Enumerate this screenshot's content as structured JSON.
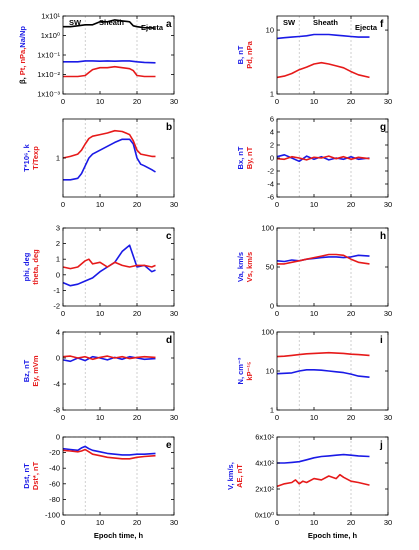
{
  "colors": {
    "blue": "#1a1ae6",
    "red": "#e61a1a",
    "black": "#000000",
    "gray": "#b0b0b0"
  },
  "chart_data": [
    {
      "id": "a",
      "type": "line",
      "letter": "a",
      "scale": "log",
      "xlim": [
        0,
        30
      ],
      "xticks": [
        "0",
        "10",
        "20",
        "30"
      ],
      "ylim": [
        -3,
        1
      ],
      "yticks": [
        {
          "v": 1,
          "t": "1x10¹"
        },
        {
          "v": 0,
          "t": "1x10⁰"
        },
        {
          "v": -1,
          "t": "1x10⁻¹"
        },
        {
          "v": -2,
          "t": "1x10⁻²"
        },
        {
          "v": -3,
          "t": "1x10⁻³"
        }
      ],
      "ylabel": [
        {
          "t": "β, ",
          "c": "black"
        },
        {
          "t": "Pt, nPa,",
          "c": "red"
        },
        {
          "t": "Na/Np",
          "c": "blue"
        }
      ],
      "headers": {
        "sw": "SW",
        "sheath": "Sheath",
        "ejecta": "Ejecta"
      },
      "series": [
        {
          "color": "black",
          "x": [
            0,
            2,
            4,
            6,
            8,
            10,
            12,
            14,
            16,
            18,
            19,
            20,
            22,
            25
          ],
          "y": [
            0.45,
            0.45,
            0.5,
            0.55,
            0.55,
            0.7,
            0.7,
            0.8,
            0.75,
            0.7,
            0.5,
            0.45,
            0.4,
            0.38
          ]
        },
        {
          "color": "blue",
          "x": [
            0,
            2,
            4,
            6,
            8,
            10,
            12,
            14,
            16,
            18,
            20,
            22,
            25
          ],
          "y": [
            -1.35,
            -1.35,
            -1.35,
            -1.3,
            -1.3,
            -1.32,
            -1.3,
            -1.32,
            -1.3,
            -1.3,
            -1.35,
            -1.38,
            -1.4
          ]
        },
        {
          "color": "red",
          "x": [
            0,
            2,
            4,
            6,
            7,
            8,
            10,
            12,
            14,
            16,
            18,
            19,
            20,
            22,
            25
          ],
          "y": [
            -2.1,
            -2.1,
            -2.1,
            -2.05,
            -1.9,
            -1.75,
            -1.65,
            -1.65,
            -1.6,
            -1.65,
            -1.7,
            -1.8,
            -2.05,
            -2.1,
            -2.1
          ]
        }
      ]
    },
    {
      "id": "b",
      "type": "line",
      "letter": "b",
      "scale": "log",
      "xlim": [
        0,
        30
      ],
      "xticks": [
        "0",
        "10",
        "20",
        "30"
      ],
      "ylim": [
        -0.5,
        0.5
      ],
      "yticks": [
        {
          "v": 0,
          "t": "1"
        }
      ],
      "ylabel": [
        {
          "t": "T*10⁶, k",
          "c": "blue"
        },
        {
          "t": "T/Texp",
          "c": "red"
        }
      ],
      "headers": null,
      "series": [
        {
          "color": "blue",
          "x": [
            0,
            2,
            4,
            5,
            6,
            7,
            8,
            10,
            12,
            14,
            16,
            18,
            19,
            20,
            21,
            22,
            24,
            25
          ],
          "y": [
            -0.28,
            -0.28,
            -0.26,
            -0.2,
            -0.1,
            0.0,
            0.05,
            0.1,
            0.15,
            0.2,
            0.24,
            0.24,
            0.18,
            0.0,
            -0.08,
            -0.1,
            -0.15,
            -0.18
          ]
        },
        {
          "color": "red",
          "x": [
            0,
            2,
            4,
            5,
            6,
            7,
            8,
            10,
            12,
            14,
            16,
            18,
            19,
            20,
            21,
            22,
            24,
            25
          ],
          "y": [
            0.0,
            0.02,
            0.05,
            0.1,
            0.18,
            0.25,
            0.28,
            0.3,
            0.32,
            0.35,
            0.34,
            0.3,
            0.22,
            0.1,
            0.05,
            0.04,
            0.02,
            0.02
          ]
        }
      ]
    },
    {
      "id": "c",
      "type": "line",
      "letter": "c",
      "scale": "linear",
      "xlim": [
        0,
        30
      ],
      "xticks": [
        "0",
        "10",
        "20",
        "30"
      ],
      "ylim": [
        -2,
        3
      ],
      "yticks": [
        {
          "v": -2,
          "t": "-2"
        },
        {
          "v": -1,
          "t": "-1"
        },
        {
          "v": 0,
          "t": "0"
        },
        {
          "v": 1,
          "t": "1"
        },
        {
          "v": 2,
          "t": "2"
        },
        {
          "v": 3,
          "t": "3"
        }
      ],
      "ylabel": [
        {
          "t": "phi, deg",
          "c": "blue"
        },
        {
          "t": "theta, deg",
          "c": "red"
        }
      ],
      "headers": null,
      "series": [
        {
          "color": "blue",
          "x": [
            0,
            2,
            4,
            6,
            8,
            10,
            12,
            14,
            16,
            18,
            19,
            20,
            22,
            24,
            25
          ],
          "y": [
            -0.5,
            -0.7,
            -0.6,
            -0.4,
            -0.2,
            0.2,
            0.5,
            0.8,
            1.5,
            1.9,
            1.2,
            0.5,
            0.6,
            0.2,
            0.3
          ]
        },
        {
          "color": "red",
          "x": [
            0,
            2,
            4,
            6,
            7,
            8,
            10,
            12,
            14,
            16,
            18,
            20,
            22,
            24,
            25
          ],
          "y": [
            0.5,
            0.4,
            0.5,
            0.9,
            1.0,
            0.7,
            0.8,
            0.5,
            0.8,
            0.6,
            0.5,
            0.6,
            0.6,
            0.5,
            0.6
          ]
        }
      ]
    },
    {
      "id": "d",
      "type": "line",
      "letter": "d",
      "scale": "linear",
      "xlim": [
        0,
        30
      ],
      "xticks": [
        "0",
        "10",
        "20",
        "30"
      ],
      "ylim": [
        -8,
        4
      ],
      "yticks": [
        {
          "v": -8,
          "t": "-8"
        },
        {
          "v": -4,
          "t": "-4"
        },
        {
          "v": 0,
          "t": "0"
        },
        {
          "v": 4,
          "t": "4"
        }
      ],
      "ylabel": [
        {
          "t": "Bz, nT",
          "c": "blue"
        },
        {
          "t": "Ey, mVm",
          "c": "red"
        }
      ],
      "headers": null,
      "series": [
        {
          "color": "blue",
          "x": [
            0,
            2,
            4,
            6,
            8,
            10,
            12,
            14,
            16,
            18,
            20,
            22,
            25
          ],
          "y": [
            -0.3,
            -0.5,
            0.0,
            -0.4,
            0.2,
            0.0,
            -0.3,
            0.1,
            -0.2,
            0.2,
            0.0,
            -0.2,
            -0.1
          ]
        },
        {
          "color": "red",
          "x": [
            0,
            2,
            4,
            6,
            8,
            10,
            12,
            14,
            16,
            18,
            20,
            22,
            25
          ],
          "y": [
            0.2,
            0.3,
            0.0,
            0.2,
            -0.2,
            0.1,
            0.3,
            0.0,
            0.2,
            -0.1,
            0.1,
            0.2,
            0.1
          ]
        }
      ]
    },
    {
      "id": "e",
      "type": "line",
      "letter": "e",
      "scale": "linear",
      "xlim": [
        0,
        30
      ],
      "xticks": [
        "0",
        "10",
        "20",
        "30"
      ],
      "ylim": [
        -100,
        0
      ],
      "yticks": [
        {
          "v": 0,
          "t": "0"
        },
        {
          "v": -20,
          "t": "-20"
        },
        {
          "v": -40,
          "t": "-40"
        },
        {
          "v": -60,
          "t": "-60"
        },
        {
          "v": -80,
          "t": "-80"
        },
        {
          "v": -100,
          "t": "-100"
        }
      ],
      "ylabel": [
        {
          "t": "Dst, nT",
          "c": "blue"
        },
        {
          "t": "Dst*, nT",
          "c": "red"
        }
      ],
      "headers": null,
      "series": [
        {
          "color": "blue",
          "x": [
            0,
            2,
            4,
            5,
            6,
            7,
            8,
            10,
            12,
            14,
            16,
            18,
            20,
            22,
            25
          ],
          "y": [
            -15,
            -16,
            -17,
            -14,
            -12,
            -15,
            -17,
            -19,
            -21,
            -22,
            -23,
            -23,
            -22,
            -22,
            -21
          ]
        },
        {
          "color": "red",
          "x": [
            0,
            2,
            4,
            5,
            6,
            7,
            8,
            10,
            12,
            14,
            16,
            18,
            20,
            22,
            25
          ],
          "y": [
            -17,
            -18,
            -19,
            -18,
            -16,
            -19,
            -22,
            -24,
            -26,
            -27,
            -28,
            -28,
            -26,
            -25,
            -24
          ]
        }
      ]
    },
    {
      "id": "f",
      "type": "line",
      "letter": "f",
      "scale": "log",
      "xlim": [
        0,
        30
      ],
      "xticks": [
        "0",
        "10",
        "20",
        "30"
      ],
      "ylim": [
        0,
        1.22
      ],
      "yticks": [
        {
          "v": 0,
          "t": "1"
        },
        {
          "v": 1,
          "t": "10"
        }
      ],
      "ylabel": [
        {
          "t": "B, nT",
          "c": "blue"
        },
        {
          "t": "Pd, nPa",
          "c": "red"
        }
      ],
      "headers": {
        "sw": "SW",
        "sheath": "Sheath",
        "ejecta": "Ejecta"
      },
      "series": [
        {
          "color": "blue",
          "x": [
            0,
            2,
            4,
            6,
            8,
            10,
            12,
            14,
            16,
            18,
            20,
            22,
            25
          ],
          "y": [
            0.87,
            0.88,
            0.89,
            0.9,
            0.91,
            0.93,
            0.93,
            0.93,
            0.92,
            0.91,
            0.9,
            0.89,
            0.89
          ]
        },
        {
          "color": "red",
          "x": [
            0,
            2,
            4,
            6,
            8,
            10,
            12,
            14,
            16,
            18,
            20,
            22,
            25
          ],
          "y": [
            0.26,
            0.28,
            0.32,
            0.38,
            0.42,
            0.47,
            0.49,
            0.47,
            0.44,
            0.41,
            0.35,
            0.3,
            0.26
          ]
        }
      ]
    },
    {
      "id": "g",
      "type": "line",
      "letter": "g",
      "scale": "linear",
      "xlim": [
        0,
        30
      ],
      "xticks": [
        "0",
        "10",
        "20",
        "30"
      ],
      "ylim": [
        -6,
        6
      ],
      "yticks": [
        {
          "v": -6,
          "t": "-6"
        },
        {
          "v": -4,
          "t": "-4"
        },
        {
          "v": -2,
          "t": "-2"
        },
        {
          "v": 0,
          "t": "0"
        },
        {
          "v": 2,
          "t": "2"
        },
        {
          "v": 4,
          "t": "4"
        },
        {
          "v": 6,
          "t": "6"
        }
      ],
      "ylabel": [
        {
          "t": "Bx, nT",
          "c": "blue"
        },
        {
          "t": "By, nT",
          "c": "red"
        }
      ],
      "headers": null,
      "series": [
        {
          "color": "blue",
          "x": [
            0,
            2,
            4,
            6,
            8,
            10,
            12,
            14,
            16,
            18,
            20,
            22,
            25
          ],
          "y": [
            0.2,
            0.5,
            0.0,
            -0.5,
            0.3,
            -0.2,
            0.2,
            -0.3,
            0.0,
            -0.2,
            0.2,
            -0.2,
            0.0
          ]
        },
        {
          "color": "red",
          "x": [
            0,
            2,
            4,
            6,
            8,
            10,
            12,
            14,
            16,
            18,
            20,
            22,
            25
          ],
          "y": [
            -0.1,
            -0.2,
            0.2,
            0.0,
            -0.3,
            0.1,
            0.0,
            0.3,
            -0.1,
            0.2,
            -0.2,
            0.1,
            -0.1
          ]
        }
      ]
    },
    {
      "id": "h",
      "type": "line",
      "letter": "h",
      "scale": "linear",
      "xlim": [
        0,
        30
      ],
      "xticks": [
        "0",
        "10",
        "20",
        "30"
      ],
      "ylim": [
        0,
        100
      ],
      "yticks": [
        {
          "v": 0,
          "t": "0"
        },
        {
          "v": 50,
          "t": "50"
        },
        {
          "v": 100,
          "t": "100"
        }
      ],
      "ylabel": [
        {
          "t": "Va, km/s",
          "c": "blue"
        },
        {
          "t": "Vs, km/s",
          "c": "red"
        }
      ],
      "headers": null,
      "series": [
        {
          "color": "blue",
          "x": [
            0,
            2,
            4,
            6,
            8,
            10,
            12,
            14,
            16,
            18,
            20,
            22,
            25
          ],
          "y": [
            58,
            57,
            59,
            58,
            60,
            61,
            62,
            63,
            63,
            62,
            63,
            65,
            64
          ]
        },
        {
          "color": "red",
          "x": [
            0,
            2,
            4,
            6,
            8,
            10,
            12,
            14,
            16,
            18,
            20,
            22,
            25
          ],
          "y": [
            54,
            54,
            56,
            58,
            60,
            62,
            64,
            66,
            66,
            65,
            60,
            56,
            54
          ]
        }
      ]
    },
    {
      "id": "i",
      "type": "line",
      "letter": "i",
      "scale": "log",
      "xlim": [
        0,
        30
      ],
      "xticks": [
        "0",
        "10",
        "20",
        "30"
      ],
      "ylim": [
        0,
        2
      ],
      "yticks": [
        {
          "v": 0,
          "t": "1"
        },
        {
          "v": 1,
          "t": "10"
        },
        {
          "v": 2,
          "t": "100"
        }
      ],
      "ylabel": [
        {
          "t": "N, cm⁻³",
          "c": "blue"
        },
        {
          "t": "kP⁻¹⁵",
          "c": "red"
        }
      ],
      "headers": null,
      "series": [
        {
          "color": "blue",
          "x": [
            0,
            2,
            4,
            6,
            8,
            10,
            12,
            14,
            16,
            18,
            20,
            22,
            25
          ],
          "y": [
            0.93,
            0.94,
            0.95,
            1.0,
            1.03,
            1.03,
            1.02,
            1.0,
            0.98,
            0.96,
            0.92,
            0.87,
            0.84
          ]
        },
        {
          "color": "red",
          "x": [
            0,
            2,
            4,
            6,
            8,
            10,
            12,
            14,
            16,
            18,
            20,
            22,
            25
          ],
          "y": [
            1.37,
            1.38,
            1.4,
            1.42,
            1.44,
            1.45,
            1.46,
            1.47,
            1.46,
            1.45,
            1.43,
            1.42,
            1.4
          ]
        }
      ]
    },
    {
      "id": "j",
      "type": "line",
      "letter": "j",
      "scale": "linear",
      "xlim": [
        0,
        30
      ],
      "xticks": [
        "0",
        "10",
        "20",
        "30"
      ],
      "ylim": [
        0,
        600
      ],
      "yticks": [
        {
          "v": 0,
          "t": "0x10⁰"
        },
        {
          "v": 200,
          "t": "2x10²"
        },
        {
          "v": 400,
          "t": "4x10²"
        },
        {
          "v": 600,
          "t": "6x10²"
        }
      ],
      "ylabel": [
        {
          "t": "V, km/s,",
          "c": "blue"
        },
        {
          "t": "AE, nT",
          "c": "red"
        }
      ],
      "headers": null,
      "series": [
        {
          "color": "blue",
          "x": [
            0,
            2,
            4,
            6,
            8,
            10,
            12,
            14,
            16,
            18,
            20,
            22,
            25
          ],
          "y": [
            400,
            400,
            405,
            410,
            425,
            440,
            450,
            455,
            460,
            465,
            460,
            455,
            450
          ]
        },
        {
          "color": "red",
          "x": [
            0,
            2,
            4,
            5,
            6,
            7,
            8,
            10,
            12,
            14,
            16,
            17,
            18,
            20,
            22,
            25
          ],
          "y": [
            220,
            240,
            250,
            270,
            240,
            260,
            250,
            280,
            270,
            300,
            280,
            310,
            290,
            260,
            250,
            230
          ]
        }
      ]
    }
  ],
  "xlabel": "Epoch time, h"
}
